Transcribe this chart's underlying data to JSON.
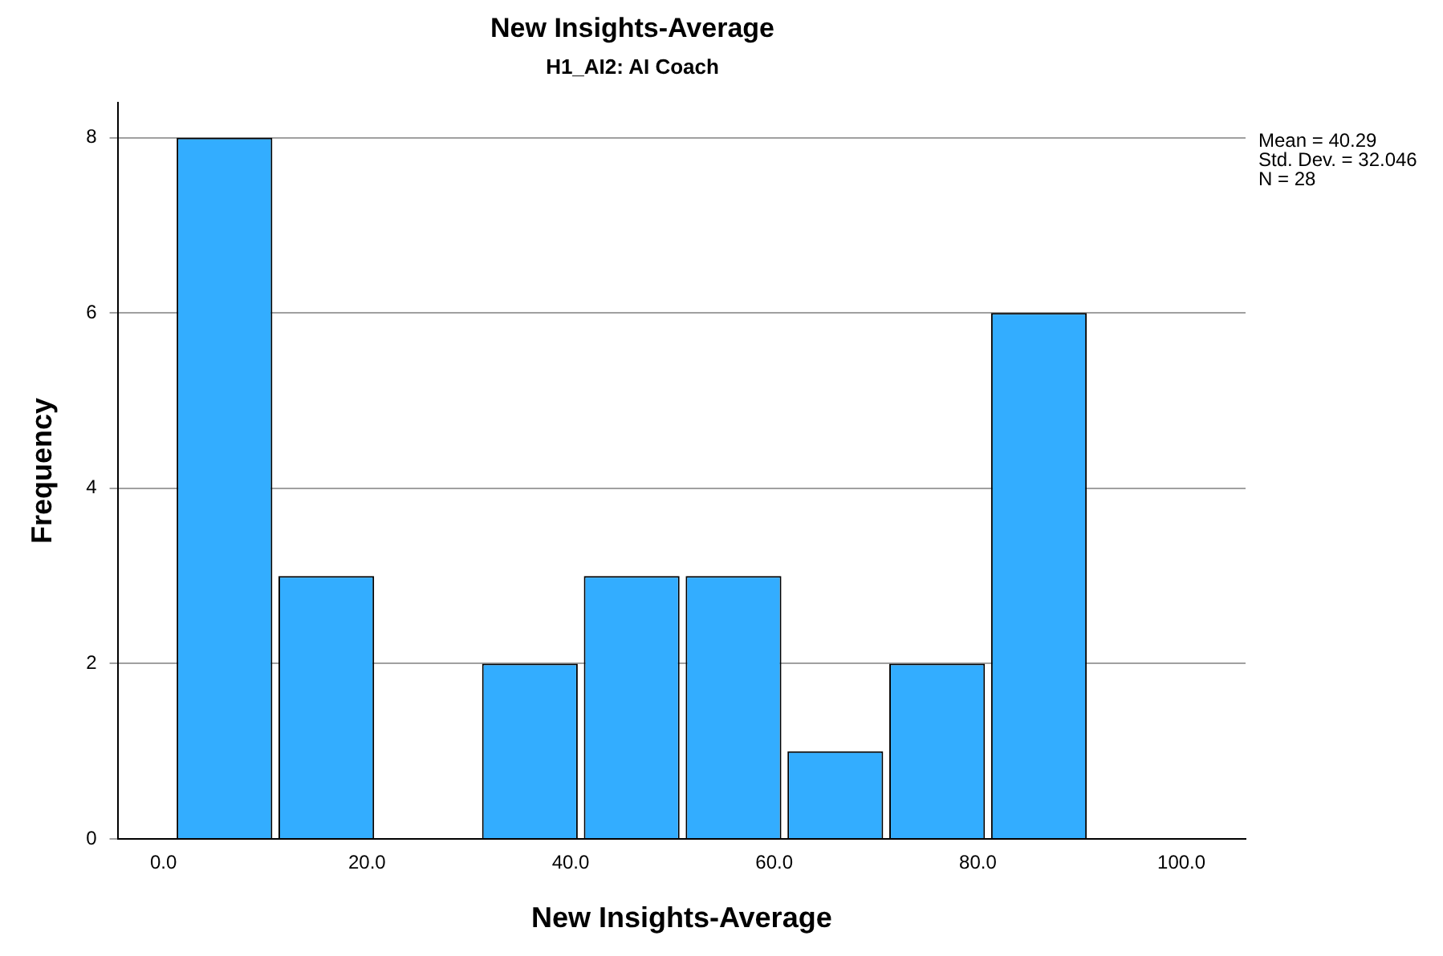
{
  "chart_data": {
    "type": "histogram",
    "title": "New Insights-Average",
    "subtitle": "H1_AI2: AI Coach",
    "xlabel": "New Insights-Average",
    "ylabel": "Frequency",
    "bins": [
      1,
      11,
      21,
      31,
      41,
      51,
      61,
      71,
      81,
      91
    ],
    "values": [
      8,
      3,
      0,
      2,
      3,
      3,
      1,
      2,
      6
    ],
    "color": "#33adff",
    "xlim": [
      -4.5,
      106.3
    ],
    "xticks": [
      {
        "value": 0,
        "label": "0.0"
      },
      {
        "value": 20,
        "label": "20.0"
      },
      {
        "value": 40,
        "label": "40.0"
      },
      {
        "value": 60,
        "label": "60.0"
      },
      {
        "value": 80,
        "label": "80.0"
      },
      {
        "value": 100,
        "label": "100.0"
      }
    ],
    "ylim": [
      0,
      8.4
    ],
    "yticks": [
      0,
      2,
      4,
      6,
      8
    ],
    "grid": "y",
    "legend": false,
    "annotations": [
      "Mean = 40.29",
      "Std. Dev. = 32.046",
      "N = 28"
    ]
  }
}
